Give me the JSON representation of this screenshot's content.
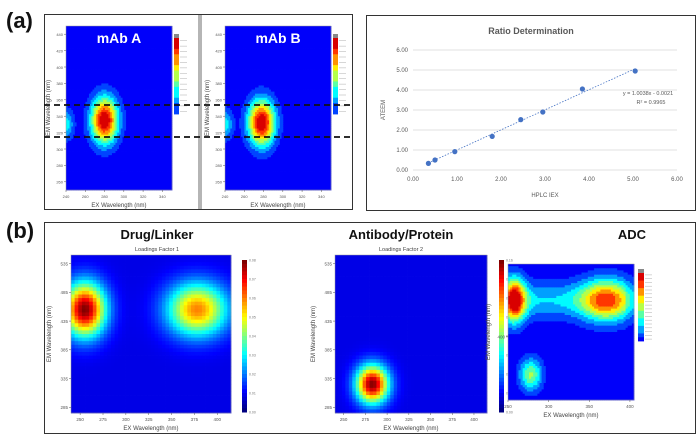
{
  "panels": {
    "a_label": "(a)",
    "b_label": "(b)"
  },
  "chart_data": [
    {
      "id": "mab-a",
      "type": "heatmap",
      "title": "mAb A",
      "xlabel": "EX Wavelength (nm)",
      "ylabel": "EM Wavelength (nm)",
      "xticks": [
        "240",
        "260",
        "280",
        "300",
        "320",
        "340"
      ],
      "yticks": [
        "440",
        "420",
        "400",
        "380",
        "360",
        "340",
        "320",
        "300",
        "280",
        "260"
      ],
      "xlim": [
        240,
        350
      ],
      "ylim": [
        250,
        450
      ],
      "peaks": [
        {
          "ex": 280,
          "em": 335,
          "intensity": 1.0
        }
      ],
      "dashed_lines_em": [
        350,
        310
      ]
    },
    {
      "id": "mab-b",
      "type": "heatmap",
      "title": "mAb B",
      "xlabel": "EX Wavelength (nm)",
      "ylabel": "EM Wavelength (nm)",
      "xticks": [
        "240",
        "260",
        "280",
        "300",
        "320",
        "340"
      ],
      "yticks": [
        "440",
        "420",
        "400",
        "380",
        "360",
        "340",
        "320",
        "300",
        "280",
        "260"
      ],
      "xlim": [
        240,
        350
      ],
      "ylim": [
        250,
        450
      ],
      "peaks": [
        {
          "ex": 278,
          "em": 332,
          "intensity": 1.0
        }
      ],
      "dashed_lines_em": [
        350,
        310
      ]
    },
    {
      "id": "ratio",
      "type": "scatter",
      "title": "Ratio Determination",
      "xlabel": "HPLC IEX",
      "ylabel": "ATEEM",
      "xlim": [
        0,
        6
      ],
      "ylim": [
        0,
        6
      ],
      "xticks": [
        "0.00",
        "1.00",
        "2.00",
        "3.00",
        "4.00",
        "5.00",
        "6.00"
      ],
      "yticks": [
        "0.00",
        "1.00",
        "2.00",
        "3.00",
        "4.00",
        "5.00",
        "6.00"
      ],
      "grid": true,
      "points": [
        {
          "x": 0.35,
          "y": 0.33
        },
        {
          "x": 0.5,
          "y": 0.5
        },
        {
          "x": 0.95,
          "y": 0.92
        },
        {
          "x": 1.8,
          "y": 1.68
        },
        {
          "x": 2.45,
          "y": 2.52
        },
        {
          "x": 2.95,
          "y": 2.9
        },
        {
          "x": 3.85,
          "y": 4.05
        },
        {
          "x": 5.05,
          "y": 4.95
        }
      ],
      "trendline": {
        "slope": 1.0038,
        "intercept": -0.0021
      },
      "equation": "y = 1.0038x - 0.0021",
      "r2": "R² = 0.9965",
      "point_color": "#4472c4"
    },
    {
      "id": "drug-linker",
      "type": "heatmap",
      "title": "Drug/Linker",
      "subtitle": "Loadings Factor 1",
      "xlabel": "EX Wavelength (nm)",
      "ylabel": "EM Wavelength (nm)",
      "xticks": [
        "250",
        "275",
        "300",
        "325",
        "350",
        "375",
        "400"
      ],
      "yticks": [
        "535",
        "485",
        "435",
        "385",
        "335",
        "285"
      ],
      "xlim": [
        240,
        415
      ],
      "ylim": [
        275,
        550
      ],
      "colorbar": [
        "0.08",
        "0.07",
        "0.06",
        "0.05",
        "0.04",
        "0.03",
        "0.02",
        "0.01",
        "0.00"
      ],
      "peaks": [
        {
          "ex": 255,
          "em": 455,
          "intensity": 1.0
        },
        {
          "ex": 378,
          "em": 455,
          "intensity": 0.72
        }
      ]
    },
    {
      "id": "antibody-protein",
      "type": "heatmap",
      "title": "Antibody/Protein",
      "subtitle": "Loadings Factor 2",
      "xlabel": "EX Wavelength (nm)",
      "ylabel": "EM Wavelength (nm)",
      "xticks": [
        "250",
        "275",
        "300",
        "325",
        "350",
        "375",
        "400"
      ],
      "yticks": [
        "535",
        "485",
        "435",
        "385",
        "335",
        "285"
      ],
      "xlim": [
        240,
        415
      ],
      "ylim": [
        275,
        550
      ],
      "colorbar": [
        "0.16",
        "0.14",
        "0.12",
        "0.10",
        "0.08",
        "0.06",
        "0.04",
        "0.02",
        "0.00"
      ],
      "peaks": [
        {
          "ex": 283,
          "em": 325,
          "intensity": 1.0
        }
      ]
    },
    {
      "id": "adc",
      "type": "heatmap",
      "title": "ADC",
      "xlabel": "EX Wavelength (nm)",
      "ylabel": "EM Wavelength (nm)",
      "xticks": [
        "250",
        "300",
        "350",
        "400"
      ],
      "yticks": [
        "400"
      ],
      "xlim": [
        250,
        405
      ],
      "ylim": [
        330,
        480
      ],
      "peaks": [
        {
          "ex": 257,
          "em": 440,
          "intensity": 0.9
        },
        {
          "ex": 370,
          "em": 440,
          "intensity": 0.6
        },
        {
          "ex": 278,
          "em": 358,
          "intensity": 0.5
        }
      ]
    }
  ]
}
